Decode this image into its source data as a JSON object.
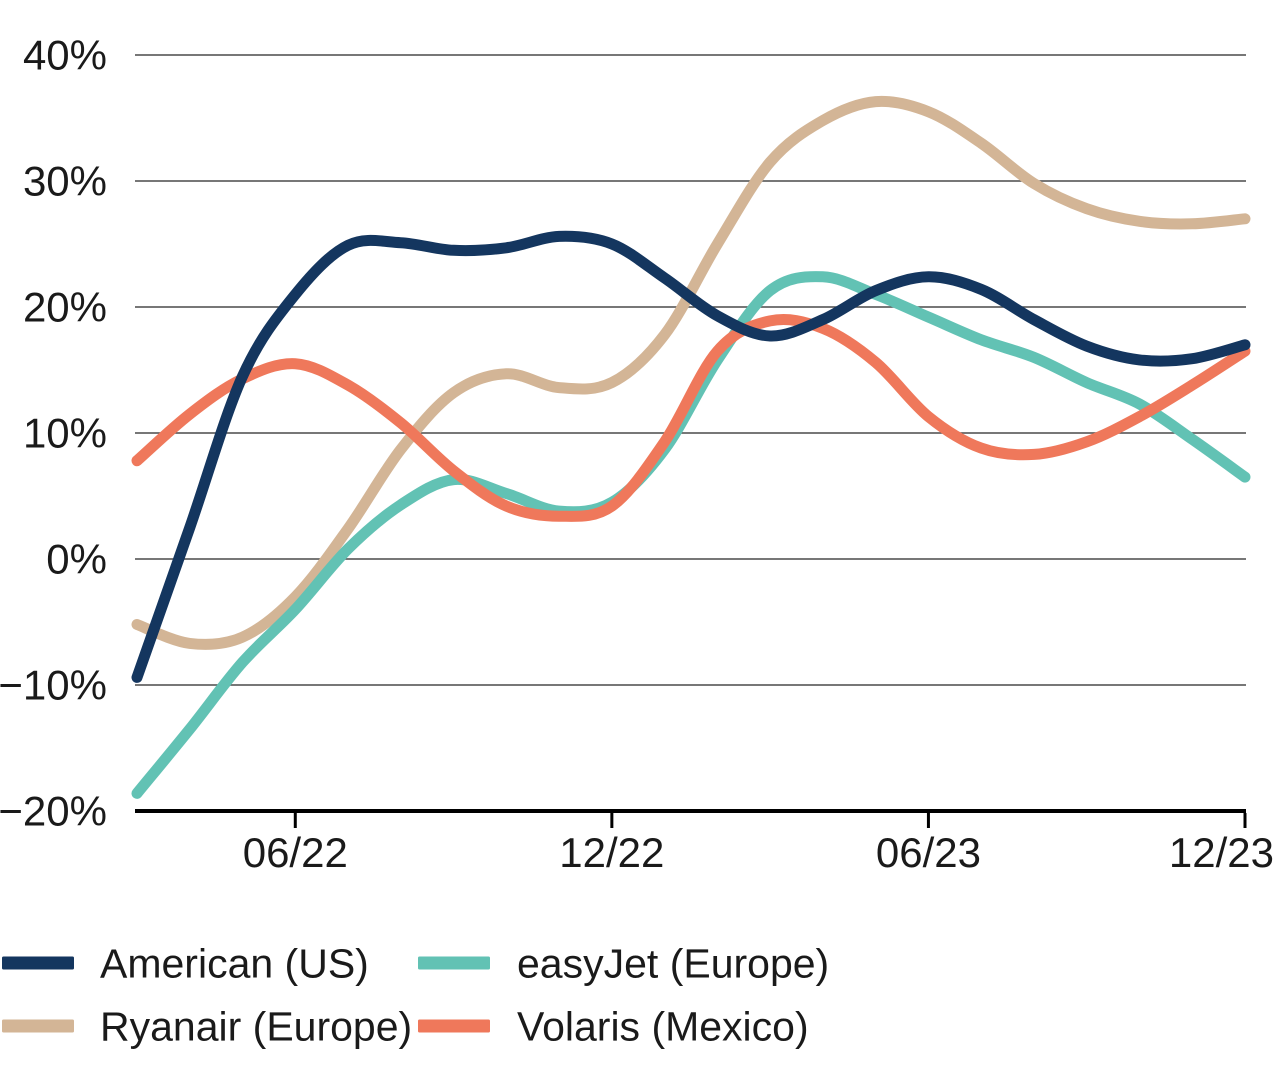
{
  "chart_data": {
    "type": "line",
    "title": "",
    "xlabel": "",
    "ylabel": "",
    "ylim": [
      -20,
      40
    ],
    "grid": true,
    "background": "#ffffff",
    "grid_color": "#4a4a4a",
    "axis_color": "#000000",
    "text_color": "#1a1a1a",
    "y_ticks": [
      {
        "value": 40,
        "label": "40%"
      },
      {
        "value": 30,
        "label": "30%"
      },
      {
        "value": 20,
        "label": "20%"
      },
      {
        "value": 10,
        "label": "10%"
      },
      {
        "value": 0,
        "label": "0%"
      },
      {
        "value": -10,
        "label": "−10%"
      },
      {
        "value": -20,
        "label": "−20%"
      }
    ],
    "x": [
      "03/22",
      "04/22",
      "05/22",
      "06/22",
      "07/22",
      "08/22",
      "09/22",
      "10/22",
      "11/22",
      "12/22",
      "01/23",
      "02/23",
      "03/23",
      "04/23",
      "05/23",
      "06/23",
      "07/23",
      "08/23",
      "09/23",
      "10/23",
      "11/23",
      "12/23"
    ],
    "x_axis_ticks": [
      {
        "index": 3,
        "label": "06/22"
      },
      {
        "index": 9,
        "label": "12/22"
      },
      {
        "index": 15,
        "label": "06/23"
      },
      {
        "index": 21,
        "label": "12/23"
      }
    ],
    "series": [
      {
        "name": "American (US)",
        "color": "#14365f",
        "values": [
          -9.4,
          2.5,
          14.5,
          21.0,
          24.9,
          25.1,
          24.5,
          24.7,
          25.6,
          25.0,
          22.3,
          19.3,
          17.7,
          19.0,
          21.3,
          22.4,
          21.4,
          19.0,
          16.9,
          15.8,
          15.9,
          17.0
        ]
      },
      {
        "name": "Ryanair (Europe)",
        "color": "#d3b596",
        "values": [
          -5.2,
          -6.7,
          -6.2,
          -3.0,
          2.4,
          8.7,
          13.2,
          14.7,
          13.6,
          14.0,
          17.8,
          25.0,
          31.5,
          34.8,
          36.3,
          35.5,
          33.0,
          29.8,
          27.8,
          26.8,
          26.6,
          27.0
        ]
      },
      {
        "name": "easyJet (Europe)",
        "color": "#62c2b4",
        "values": [
          -18.6,
          -13.5,
          -8.2,
          -4.0,
          0.8,
          4.3,
          6.3,
          5.2,
          3.8,
          4.5,
          8.7,
          15.8,
          21.3,
          22.4,
          21.0,
          19.2,
          17.4,
          16.0,
          14.0,
          12.3,
          9.5,
          6.5
        ]
      },
      {
        "name": "Volaris (Mexico)",
        "color": "#ef785b",
        "values": [
          7.8,
          11.5,
          14.3,
          15.5,
          13.8,
          10.8,
          7.0,
          4.2,
          3.4,
          4.2,
          9.3,
          16.5,
          18.9,
          18.3,
          15.6,
          11.3,
          8.8,
          8.3,
          9.3,
          11.3,
          13.8,
          16.5
        ]
      }
    ],
    "legend": {
      "position": "bottom-left",
      "columns": 2,
      "entries": [
        "American (US)",
        "Ryanair (Europe)",
        "easyJet (Europe)",
        "Volaris (Mexico)"
      ]
    }
  }
}
